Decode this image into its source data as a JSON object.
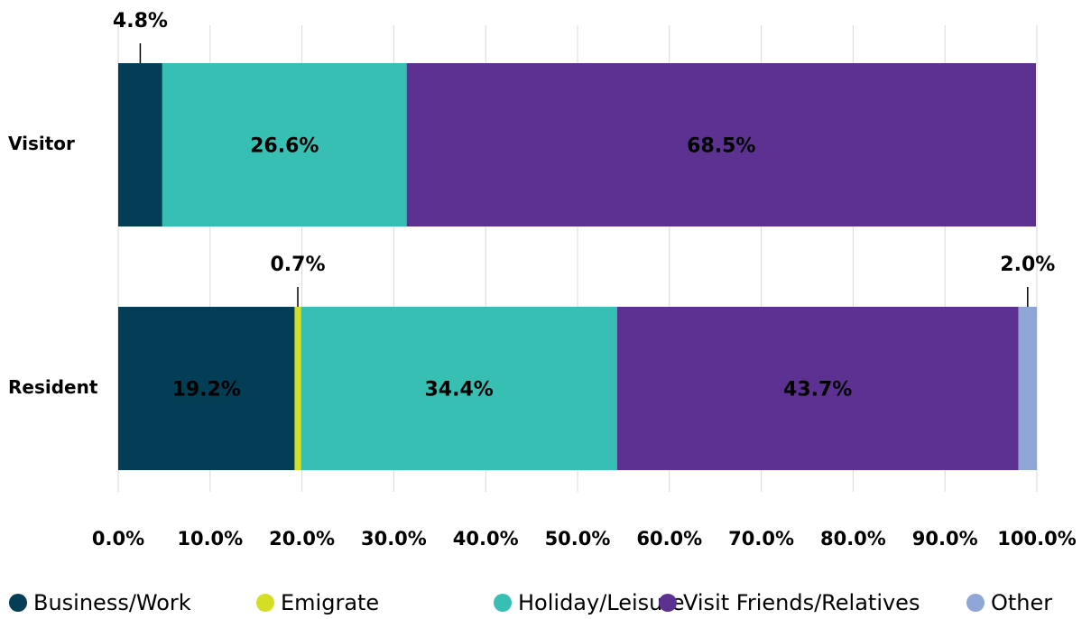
{
  "chart_data": {
    "type": "stacked_barh",
    "categories": [
      "Visitor",
      "Resident"
    ],
    "series": [
      {
        "name": "Business/Work",
        "color": "#033d56",
        "values": [
          4.8,
          19.2
        ],
        "value_labels": [
          "4.8%",
          "19.2%"
        ]
      },
      {
        "name": "Emigrate",
        "color": "#d4de25",
        "values": [
          null,
          0.7
        ],
        "value_labels": [
          null,
          "0.7%"
        ]
      },
      {
        "name": "Holiday/Leisure",
        "color": "#37bfb4",
        "values": [
          26.6,
          34.4
        ],
        "value_labels": [
          "26.6%",
          "34.4%"
        ]
      },
      {
        "name": "Visit Friends/Relatives",
        "color": "#5c3191",
        "values": [
          68.5,
          43.7
        ],
        "value_labels": [
          "68.5%",
          "43.7%"
        ]
      },
      {
        "name": "Other",
        "color": "#8fa6d6",
        "values": [
          null,
          2.0
        ],
        "value_labels": [
          null,
          "2.0%"
        ]
      }
    ],
    "xlim": [
      0,
      100
    ],
    "xticks": [
      {
        "value": 0,
        "label": "0.0%"
      },
      {
        "value": 10,
        "label": "10.0%"
      },
      {
        "value": 20,
        "label": "20.0%"
      },
      {
        "value": 30,
        "label": "30.0%"
      },
      {
        "value": 40,
        "label": "40.0%"
      },
      {
        "value": 50,
        "label": "50.0%"
      },
      {
        "value": 60,
        "label": "60.0%"
      },
      {
        "value": 70,
        "label": "70.0%"
      },
      {
        "value": 80,
        "label": "80.0%"
      },
      {
        "value": 90,
        "label": "90.0%"
      },
      {
        "value": 100,
        "label": "100.0%"
      }
    ],
    "grid": true,
    "legend": "bottom"
  }
}
